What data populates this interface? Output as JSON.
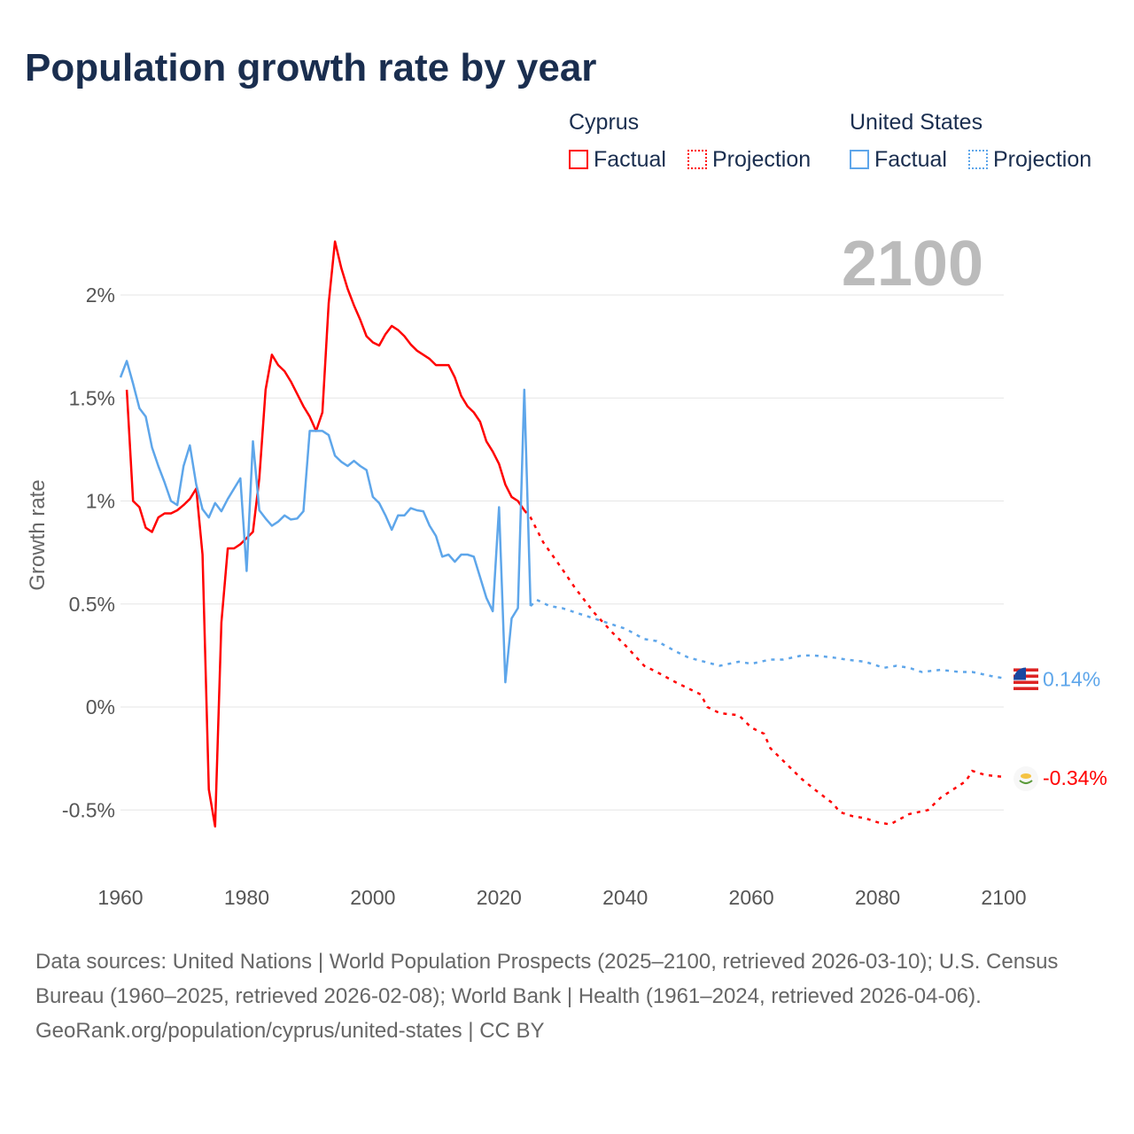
{
  "title": "Population growth rate by year",
  "legend": {
    "groups": [
      {
        "name": "Cyprus",
        "color": "#ff0000",
        "factual": "Factual",
        "projection": "Projection"
      },
      {
        "name": "United States",
        "color": "#5ea6ea",
        "factual": "Factual",
        "projection": "Projection"
      }
    ]
  },
  "footer": {
    "sources": "Data sources: United Nations | World Population Prospects (2025–2100, retrieved 2026-03-10); U.S. Census Bureau (1960–2025, retrieved 2026-02-08); World Bank | Health (1961–2024, retrieved 2026-04-06).",
    "credit": "GeoRank.org/population/cyprus/united-states | CC BY"
  },
  "chart_data": {
    "type": "line",
    "title": "Population growth rate by year",
    "ylabel": "Growth rate",
    "xlabel": "",
    "year_label": "2100",
    "xlim": [
      1960,
      2100
    ],
    "ylim": [
      -0.7,
      2.35
    ],
    "xticks": [
      1960,
      1980,
      2000,
      2020,
      2040,
      2060,
      2080,
      2100
    ],
    "xtick_labels": [
      "1960",
      "1980",
      "2000",
      "2020",
      "2040",
      "2060",
      "2080",
      "2100"
    ],
    "yticks": [
      -0.5,
      0,
      0.5,
      1,
      1.5,
      2
    ],
    "ytick_labels": [
      "-0.5%",
      "0%",
      "0.5%",
      "1%",
      "1.5%",
      "2%"
    ],
    "grid": true,
    "series": [
      {
        "name": "Cyprus",
        "color": "#ff0000",
        "end_label": "-0.34%",
        "flag": "cyprus",
        "factual": {
          "x": [
            1961,
            1962,
            1963,
            1964,
            1965,
            1966,
            1967,
            1968,
            1969,
            1970,
            1971,
            1972,
            1973,
            1974,
            1975,
            1976,
            1977,
            1978,
            1979,
            1980,
            1981,
            1982,
            1983,
            1984,
            1985,
            1986,
            1987,
            1988,
            1989,
            1990,
            1991,
            1992,
            1993,
            1994,
            1995,
            1996,
            1997,
            1998,
            1999,
            2000,
            2001,
            2002,
            2003,
            2004,
            2005,
            2006,
            2007,
            2008,
            2009,
            2010,
            2011,
            2012,
            2013,
            2014,
            2015,
            2016,
            2017,
            2018,
            2019,
            2020,
            2021,
            2022,
            2023,
            2024
          ],
          "y": [
            1.54,
            1.0,
            0.97,
            0.87,
            0.85,
            0.92,
            0.94,
            0.94,
            0.955,
            0.98,
            1.01,
            1.06,
            0.74,
            -0.4,
            -0.58,
            0.41,
            0.77,
            0.77,
            0.79,
            0.82,
            0.85,
            1.11,
            1.54,
            1.71,
            1.66,
            1.63,
            1.58,
            1.52,
            1.46,
            1.41,
            1.34,
            1.43,
            1.96,
            2.26,
            2.13,
            2.03,
            1.95,
            1.88,
            1.8,
            1.77,
            1.755,
            1.81,
            1.85,
            1.83,
            1.8,
            1.76,
            1.73,
            1.71,
            1.69,
            1.66,
            1.66,
            1.66,
            1.6,
            1.51,
            1.46,
            1.43,
            1.385,
            1.29,
            1.24,
            1.18,
            1.08,
            1.02,
            1.0,
            0.955
          ]
        },
        "projection": {
          "x": [
            2024,
            2025,
            2027,
            2030,
            2032,
            2035,
            2038,
            2040,
            2043,
            2045,
            2048,
            2050,
            2052,
            2053,
            2055,
            2058,
            2060,
            2062,
            2063,
            2065,
            2068,
            2070,
            2073,
            2074,
            2076,
            2078,
            2080,
            2082,
            2085,
            2088,
            2090,
            2092,
            2094,
            2095,
            2097,
            2100
          ],
          "y": [
            0.955,
            0.92,
            0.8,
            0.67,
            0.58,
            0.46,
            0.36,
            0.3,
            0.2,
            0.17,
            0.12,
            0.09,
            0.06,
            0.0,
            -0.03,
            -0.04,
            -0.1,
            -0.13,
            -0.2,
            -0.26,
            -0.35,
            -0.4,
            -0.47,
            -0.51,
            -0.53,
            -0.54,
            -0.56,
            -0.57,
            -0.52,
            -0.5,
            -0.44,
            -0.4,
            -0.36,
            -0.31,
            -0.33,
            -0.34
          ]
        }
      },
      {
        "name": "United States",
        "color": "#5ea6ea",
        "end_label": "0.14%",
        "flag": "united-states",
        "factual": {
          "x": [
            1960,
            1961,
            1962,
            1963,
            1964,
            1965,
            1966,
            1967,
            1968,
            1969,
            1970,
            1971,
            1972,
            1973,
            1974,
            1975,
            1976,
            1977,
            1978,
            1979,
            1980,
            1981,
            1982,
            1983,
            1984,
            1985,
            1986,
            1987,
            1988,
            1989,
            1990,
            1991,
            1992,
            1993,
            1994,
            1995,
            1996,
            1997,
            1998,
            1999,
            2000,
            2001,
            2002,
            2003,
            2004,
            2005,
            2006,
            2007,
            2008,
            2009,
            2010,
            2011,
            2012,
            2013,
            2014,
            2015,
            2016,
            2017,
            2018,
            2019,
            2020,
            2021,
            2022,
            2023,
            2024,
            2025
          ],
          "y": [
            1.6,
            1.68,
            1.57,
            1.45,
            1.41,
            1.26,
            1.17,
            1.09,
            1.0,
            0.98,
            1.17,
            1.27,
            1.08,
            0.96,
            0.92,
            0.99,
            0.95,
            1.01,
            1.06,
            1.11,
            0.66,
            1.29,
            0.955,
            0.915,
            0.88,
            0.9,
            0.93,
            0.91,
            0.915,
            0.95,
            1.34,
            1.34,
            1.34,
            1.32,
            1.22,
            1.19,
            1.17,
            1.195,
            1.17,
            1.15,
            1.02,
            0.99,
            0.93,
            0.86,
            0.93,
            0.93,
            0.965,
            0.955,
            0.95,
            0.88,
            0.83,
            0.73,
            0.74,
            0.705,
            0.74,
            0.74,
            0.73,
            0.63,
            0.53,
            0.465,
            0.97,
            0.12,
            0.43,
            0.48,
            1.54,
            0.49
          ]
        },
        "projection": {
          "x": [
            2025,
            2026,
            2028,
            2030,
            2035,
            2040,
            2043,
            2045,
            2048,
            2050,
            2055,
            2058,
            2060,
            2063,
            2065,
            2068,
            2070,
            2073,
            2075,
            2078,
            2081,
            2083,
            2085,
            2087,
            2090,
            2093,
            2095,
            2098,
            2100
          ],
          "y": [
            0.49,
            0.52,
            0.49,
            0.48,
            0.43,
            0.38,
            0.33,
            0.32,
            0.27,
            0.24,
            0.2,
            0.22,
            0.21,
            0.23,
            0.23,
            0.25,
            0.25,
            0.24,
            0.23,
            0.22,
            0.19,
            0.2,
            0.19,
            0.17,
            0.18,
            0.17,
            0.17,
            0.15,
            0.14
          ]
        }
      }
    ]
  }
}
